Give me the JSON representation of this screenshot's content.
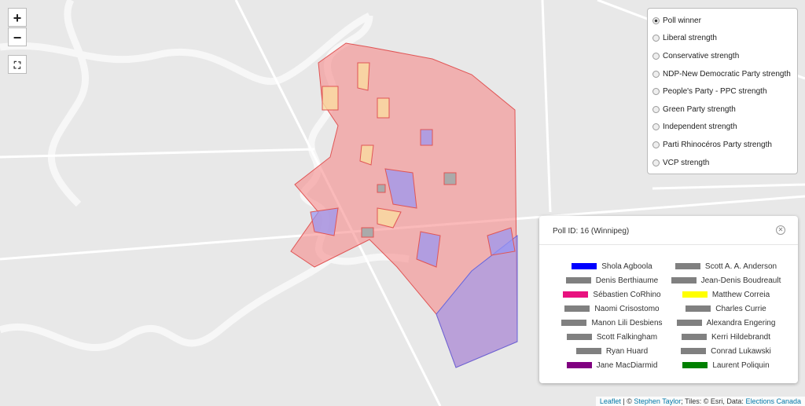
{
  "controls": {
    "zoom_in": "+",
    "zoom_out": "−"
  },
  "layers": {
    "selected": 0,
    "options": [
      "Poll winner",
      "Liberal strength",
      "Conservative strength",
      "NDP-New Democratic Party strength",
      "People's Party - PPC strength",
      "Green Party strength",
      "Independent strength",
      "Parti Rhinocéros Party strength",
      "VCP strength"
    ]
  },
  "popup": {
    "title": "Poll ID: 16 (Winnipeg)",
    "candidates": [
      {
        "name": "Shola Agboola",
        "color": "#0000ff"
      },
      {
        "name": "Scott A. A. Anderson",
        "color": "#808080"
      },
      {
        "name": "Denis Berthiaume",
        "color": "#808080"
      },
      {
        "name": "Jean-Denis Boudreault",
        "color": "#808080"
      },
      {
        "name": "Sébastien CoRhino",
        "color": "#e8127f"
      },
      {
        "name": "Matthew Correia",
        "color": "#ffff00"
      },
      {
        "name": "Naomi Crisostomo",
        "color": "#808080"
      },
      {
        "name": "Charles Currie",
        "color": "#808080"
      },
      {
        "name": "Manon Lili Desbiens",
        "color": "#808080"
      },
      {
        "name": "Alexandra  Engering",
        "color": "#808080"
      },
      {
        "name": "Scott Falkingham",
        "color": "#808080"
      },
      {
        "name": "Kerri Hildebrandt",
        "color": "#808080"
      },
      {
        "name": "Ryan Huard",
        "color": "#808080"
      },
      {
        "name": "Conrad Lukawski",
        "color": "#808080"
      },
      {
        "name": "Jane MacDiarmid",
        "color": "#800080"
      },
      {
        "name": "Laurent Poliquin",
        "color": "#008000"
      }
    ]
  },
  "attribution": {
    "leaflet": "Leaflet",
    "sep": "| ©",
    "author": "Stephen Taylor",
    "tiles": "; Tiles: © Esri, Data:",
    "source": "Elections Canada"
  }
}
